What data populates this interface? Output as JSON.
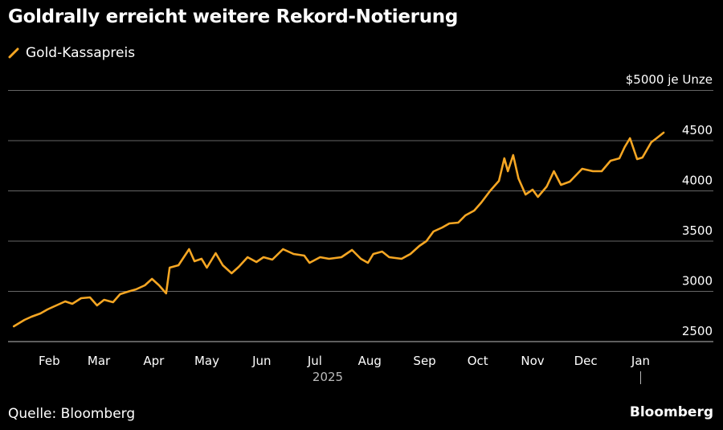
{
  "chart_data": {
    "type": "line",
    "title": "Goldrally erreicht weitere Rekord-Notierung",
    "legend": [
      "Gold-Kassapreis"
    ],
    "legend_placement": "top-left",
    "ylabel": "$5000 je Unze",
    "y_unit_label": "$5000 je Unze",
    "ylim": [
      2500,
      5000
    ],
    "y_ticks": [
      2500,
      3000,
      3500,
      4000,
      4500
    ],
    "y_tick_labels": [
      "2500",
      "3000",
      "3500",
      "4000",
      "4500"
    ],
    "grid": true,
    "x_unit": "days since 2025-01-01",
    "x_ticks": [
      {
        "label": "Feb",
        "day": 31
      },
      {
        "label": "Mar",
        "day": 59
      },
      {
        "label": "Apr",
        "day": 90
      },
      {
        "label": "May",
        "day": 120
      },
      {
        "label": "Jun",
        "day": 151
      },
      {
        "label": "Jul",
        "day": 181
      },
      {
        "label": "Aug",
        "day": 212
      },
      {
        "label": "Sep",
        "day": 243
      },
      {
        "label": "Oct",
        "day": 273
      },
      {
        "label": "Nov",
        "day": 304
      },
      {
        "label": "Dec",
        "day": 334
      },
      {
        "label": "Jan",
        "day": 365
      }
    ],
    "year_label": "2025",
    "series": [
      {
        "name": "Gold-Kassapreis",
        "color": "#f5a623",
        "points": [
          [
            11,
            2652
          ],
          [
            17,
            2716
          ],
          [
            21,
            2748
          ],
          [
            26,
            2780
          ],
          [
            30,
            2820
          ],
          [
            35,
            2860
          ],
          [
            40,
            2900
          ],
          [
            44,
            2876
          ],
          [
            49,
            2932
          ],
          [
            54,
            2940
          ],
          [
            58,
            2860
          ],
          [
            62,
            2916
          ],
          [
            67,
            2892
          ],
          [
            71,
            2972
          ],
          [
            76,
            3000
          ],
          [
            80,
            3020
          ],
          [
            85,
            3060
          ],
          [
            89,
            3124
          ],
          [
            93,
            3060
          ],
          [
            97,
            2980
          ],
          [
            99,
            3236
          ],
          [
            104,
            3260
          ],
          [
            110,
            3420
          ],
          [
            113,
            3300
          ],
          [
            117,
            3324
          ],
          [
            120,
            3236
          ],
          [
            125,
            3380
          ],
          [
            129,
            3260
          ],
          [
            134,
            3180
          ],
          [
            138,
            3244
          ],
          [
            143,
            3340
          ],
          [
            148,
            3292
          ],
          [
            152,
            3340
          ],
          [
            157,
            3316
          ],
          [
            163,
            3420
          ],
          [
            169,
            3372
          ],
          [
            175,
            3356
          ],
          [
            178,
            3284
          ],
          [
            184,
            3340
          ],
          [
            189,
            3324
          ],
          [
            196,
            3340
          ],
          [
            202,
            3412
          ],
          [
            207,
            3324
          ],
          [
            211,
            3284
          ],
          [
            214,
            3372
          ],
          [
            219,
            3396
          ],
          [
            223,
            3340
          ],
          [
            230,
            3324
          ],
          [
            235,
            3372
          ],
          [
            240,
            3452
          ],
          [
            244,
            3500
          ],
          [
            248,
            3596
          ],
          [
            253,
            3636
          ],
          [
            257,
            3676
          ],
          [
            262,
            3684
          ],
          [
            266,
            3756
          ],
          [
            271,
            3804
          ],
          [
            275,
            3884
          ],
          [
            280,
            4000
          ],
          [
            285,
            4100
          ],
          [
            288,
            4324
          ],
          [
            290,
            4196
          ],
          [
            293,
            4356
          ],
          [
            296,
            4124
          ],
          [
            300,
            3964
          ],
          [
            304,
            4012
          ],
          [
            307,
            3940
          ],
          [
            312,
            4044
          ],
          [
            316,
            4196
          ],
          [
            320,
            4060
          ],
          [
            325,
            4092
          ],
          [
            332,
            4220
          ],
          [
            338,
            4196
          ],
          [
            343,
            4196
          ],
          [
            348,
            4300
          ],
          [
            353,
            4324
          ],
          [
            356,
            4436
          ],
          [
            359,
            4524
          ],
          [
            363,
            4316
          ],
          [
            366,
            4332
          ],
          [
            371,
            4484
          ],
          [
            374,
            4524
          ],
          [
            378,
            4580
          ]
        ]
      }
    ]
  },
  "source": "Quelle: Bloomberg",
  "brand": "Bloomberg"
}
